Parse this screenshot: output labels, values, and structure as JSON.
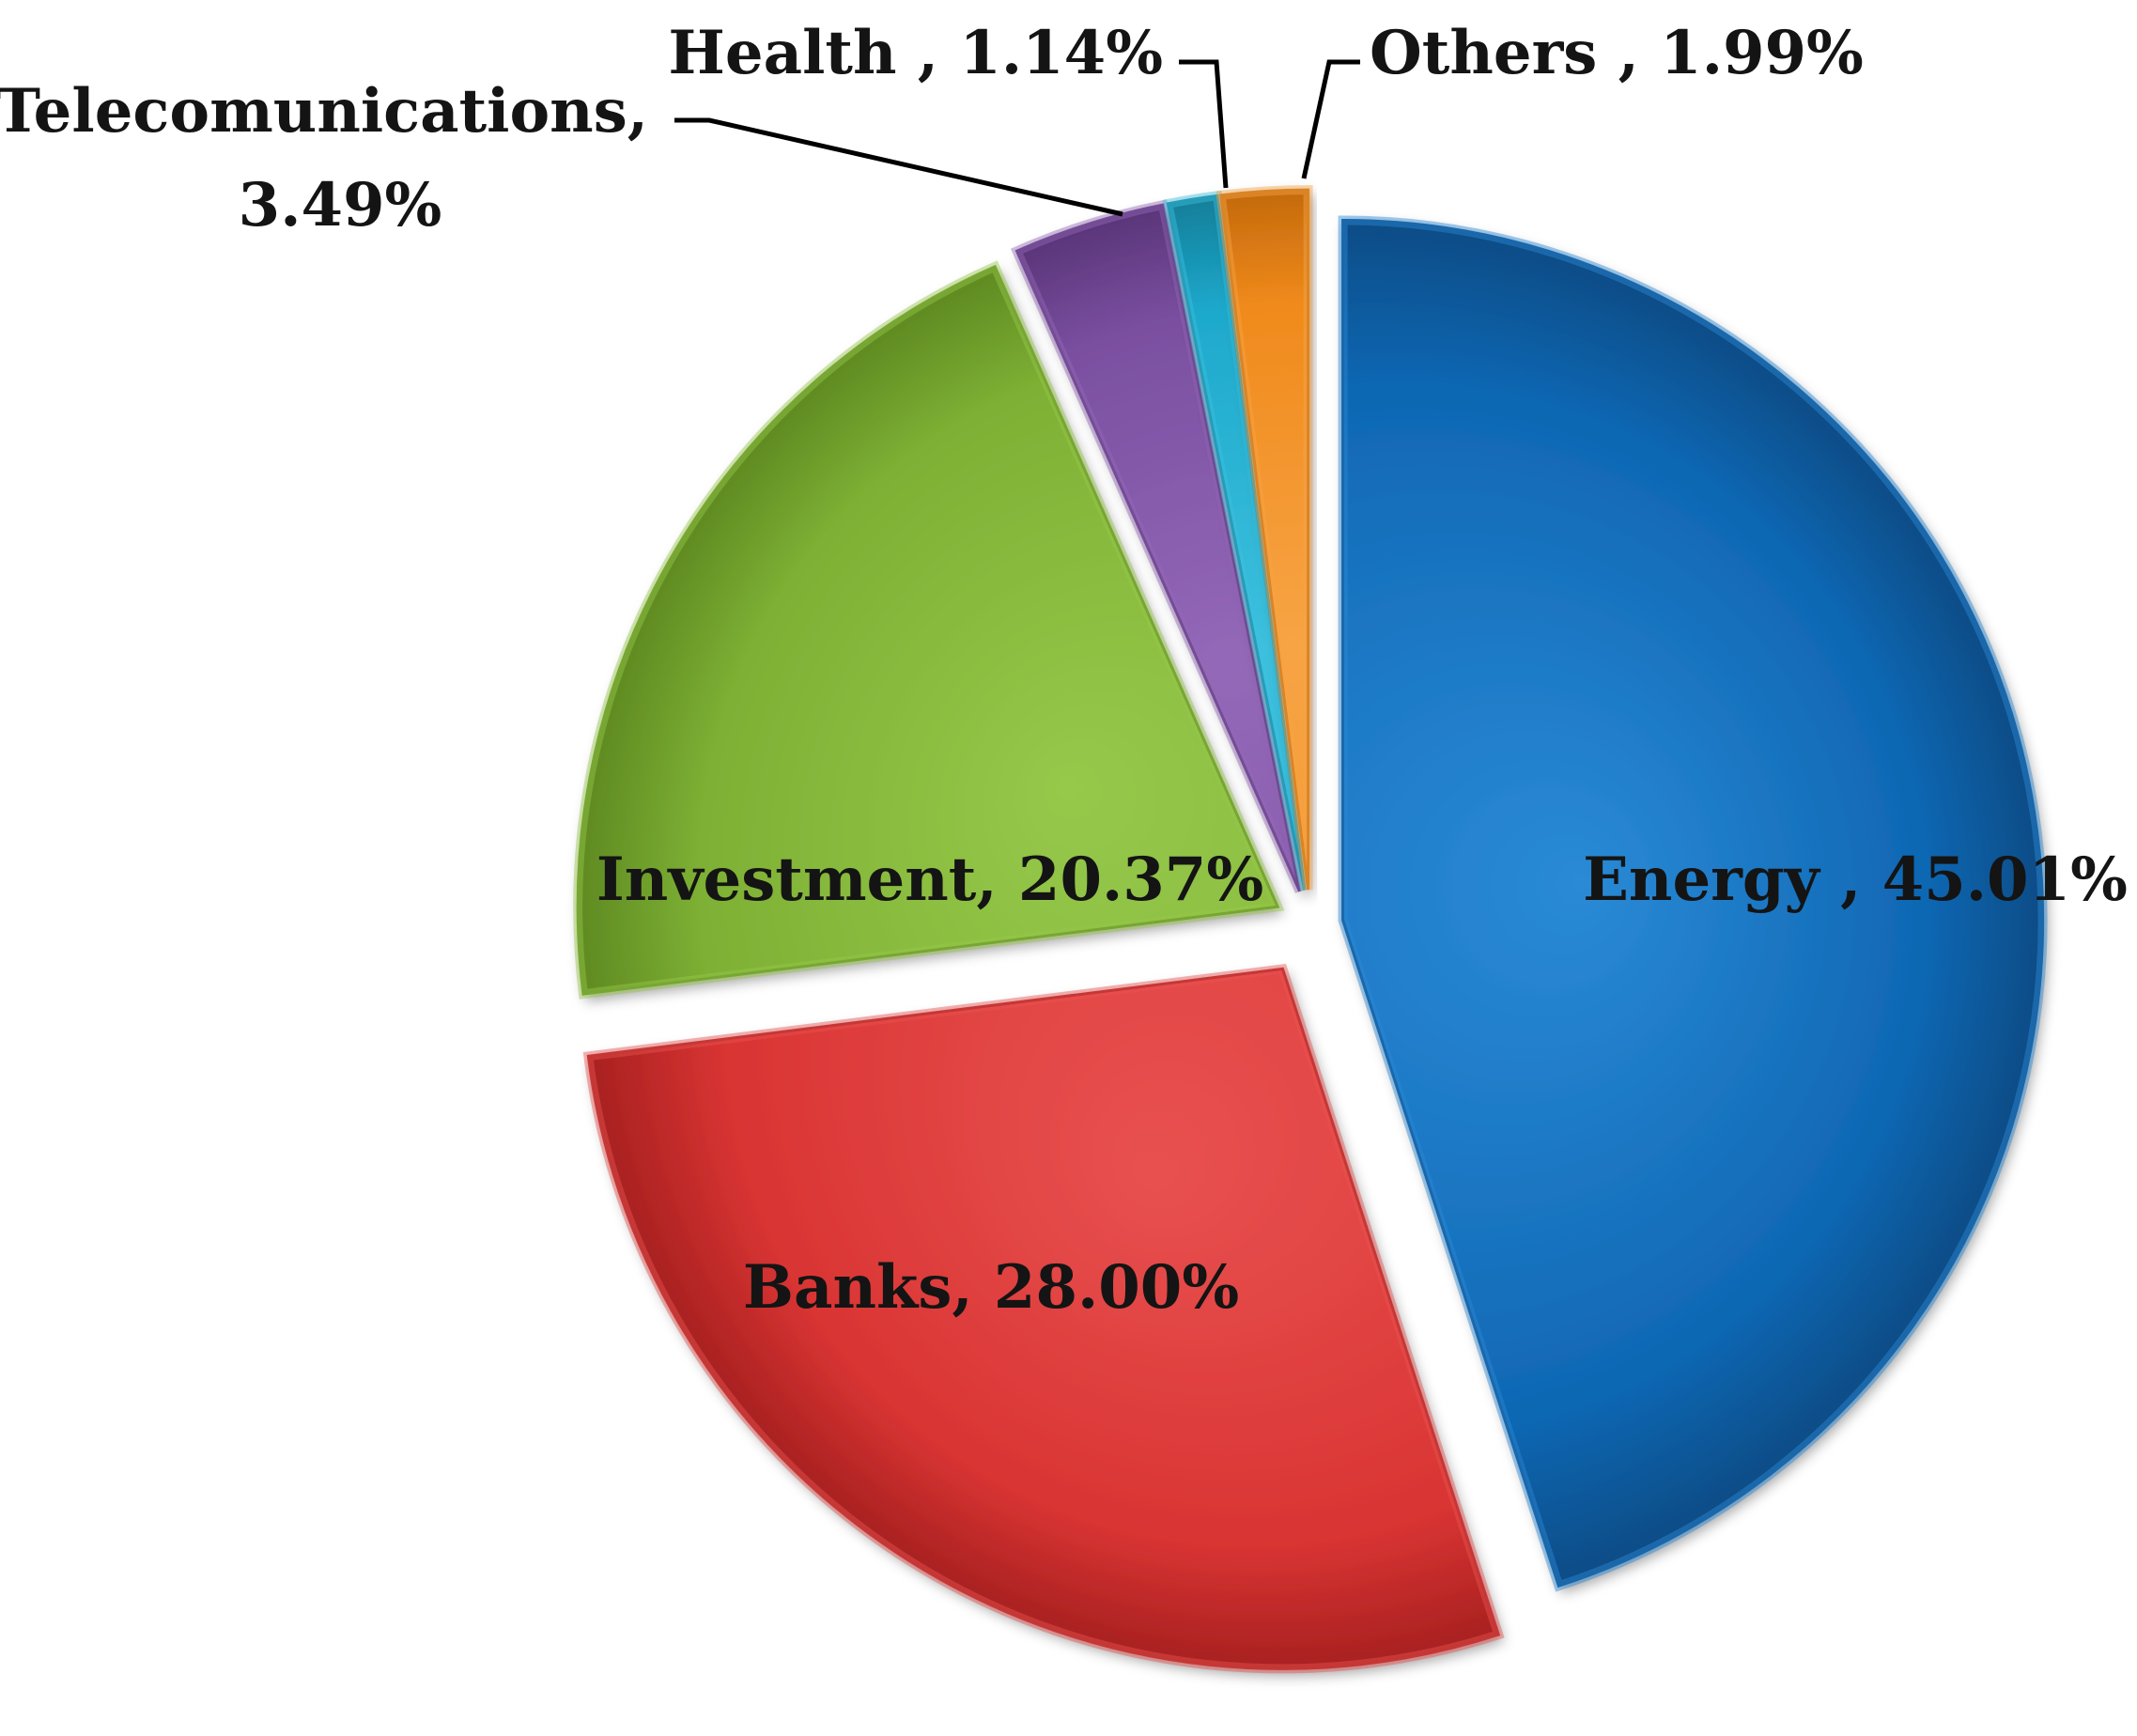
{
  "chart_data": {
    "type": "pie",
    "title": "",
    "exploded": true,
    "start": "12 o'clock",
    "direction": "clockwise",
    "slices": [
      {
        "name": "Energy",
        "value": 45.01,
        "label": "Energy , 45.01%",
        "color": "#0f67b3",
        "color_dark": "#0a4c86",
        "color_light": "#2a8ad6"
      },
      {
        "name": "Banks",
        "value": 28.0,
        "label": "Banks, 28.00%",
        "color": "#d93433",
        "color_dark": "#a82120",
        "color_light": "#e85150"
      },
      {
        "name": "Investment",
        "value": 20.37,
        "label": "Investment, 20.37%",
        "color": "#7db034",
        "color_dark": "#5f8a22",
        "color_light": "#96c84a"
      },
      {
        "name": "Telecomunications",
        "value": 3.49,
        "label_lines": [
          "Telecomunications,",
          "3.49%"
        ],
        "color": "#7a4fa0",
        "color_dark": "#5a3579",
        "color_light": "#9468b8"
      },
      {
        "name": "Health",
        "value": 1.14,
        "label": "Health , 1.14%",
        "color": "#1ea9cc",
        "color_dark": "#127f9a",
        "color_light": "#3cc0de"
      },
      {
        "name": "Others",
        "value": 1.99,
        "label": "Others , 1.99%",
        "color": "#f08a1c",
        "color_dark": "#c46a0c",
        "color_light": "#f7a445"
      }
    ]
  }
}
